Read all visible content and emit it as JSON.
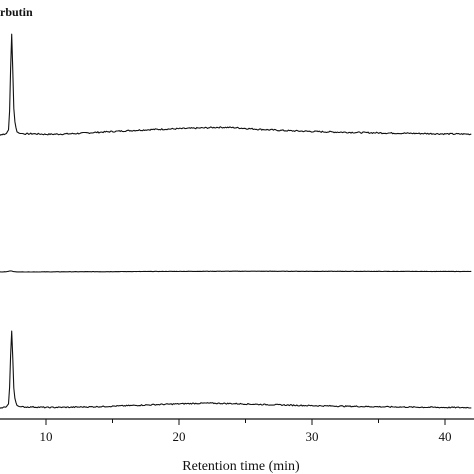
{
  "chart_data": {
    "type": "line",
    "title": "",
    "xlabel": "Retention time (min)",
    "ylabel": "",
    "xlim": [
      5.5,
      42
    ],
    "x_ticks": [
      10,
      20,
      30,
      40
    ],
    "x_tick_labels": [
      "10",
      "20",
      "30",
      "40"
    ],
    "grid": false,
    "annotations": [
      {
        "text": "rbutin",
        "near_x": 7.4
      }
    ],
    "series": [
      {
        "x": [
          5.5,
          6.5,
          7.0,
          7.2,
          7.3,
          7.4,
          7.5,
          7.6,
          7.8,
          8.0,
          8.5,
          9.0,
          10,
          11,
          12,
          14,
          16,
          18,
          20,
          22,
          23,
          24,
          26,
          28,
          30,
          32,
          35,
          38,
          40,
          42
        ],
        "values": [
          0.0,
          0.2,
          1.0,
          5.0,
          33.0,
          100.0,
          58.0,
          16.0,
          3.0,
          1.5,
          1.0,
          1.2,
          0.6,
          0.8,
          1.2,
          2.5,
          3.8,
          5.0,
          5.7,
          6.5,
          7.0,
          6.8,
          5.2,
          4.0,
          3.2,
          2.6,
          1.9,
          1.4,
          1.0,
          0.8
        ]
      },
      {
        "x": [
          5.5,
          6.5,
          7.0,
          7.2,
          7.3,
          7.4,
          7.5,
          7.6,
          7.8,
          8.0,
          10,
          12,
          14,
          16,
          18,
          20,
          22,
          24,
          26,
          28,
          30,
          35,
          40,
          42
        ],
        "values": [
          0.0,
          0.3,
          0.8,
          2.5,
          4.0,
          3.5,
          2.0,
          1.0,
          0.5,
          0.3,
          0.5,
          0.8,
          1.0,
          1.4,
          1.8,
          2.1,
          2.4,
          2.5,
          2.5,
          2.4,
          2.3,
          2.1,
          1.9,
          1.8
        ]
      },
      {
        "x": [
          5.5,
          6.5,
          7.0,
          7.2,
          7.3,
          7.4,
          7.5,
          7.6,
          7.8,
          8.0,
          8.5,
          9.0,
          10,
          12,
          14,
          16,
          18,
          20,
          22,
          24,
          26,
          28,
          30,
          32,
          35,
          38,
          40,
          42
        ],
        "values": [
          0.0,
          0.2,
          1.0,
          5.0,
          35.0,
          93.0,
          55.0,
          14.0,
          3.0,
          1.5,
          1.0,
          1.2,
          0.6,
          0.9,
          1.5,
          2.5,
          3.6,
          4.6,
          5.4,
          4.9,
          4.0,
          3.3,
          2.6,
          2.1,
          1.4,
          0.9,
          0.6,
          0.5
        ]
      }
    ]
  }
}
